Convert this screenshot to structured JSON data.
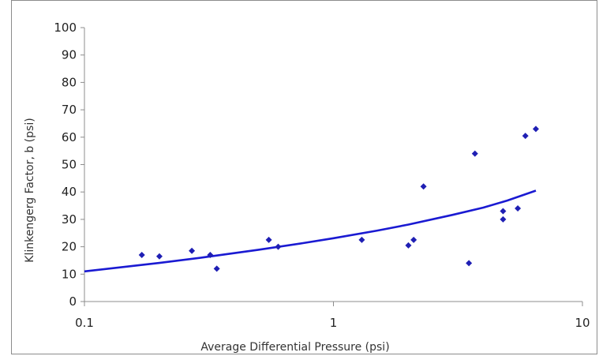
{
  "chart_data": {
    "type": "scatter",
    "title": "",
    "xlabel": "Average Differential Pressure (psi)",
    "ylabel": "Klinkengerg Factor, b (psi)",
    "xscale": "log",
    "xlim": [
      0.1,
      10
    ],
    "ylim": [
      0,
      100
    ],
    "xticks": [
      0.1,
      1,
      10
    ],
    "xtick_labels": [
      "0.1",
      "1",
      "10"
    ],
    "yticks": [
      0,
      10,
      20,
      30,
      40,
      50,
      60,
      70,
      80,
      90,
      100
    ],
    "ytick_labels": [
      "0",
      "10",
      "20",
      "30",
      "40",
      "50",
      "60",
      "70",
      "80",
      "90",
      "100"
    ],
    "grid": false,
    "legend": "none",
    "marker_color": "#1f1fb4",
    "line_color": "#1a1ad2",
    "series": [
      {
        "kind": "points",
        "x": [
          0.17,
          0.2,
          0.27,
          0.32,
          0.34,
          0.55,
          0.6,
          1.3,
          2.0,
          2.1,
          2.3,
          3.5,
          3.7,
          4.8,
          4.8,
          5.5,
          5.9,
          6.5
        ],
        "y": [
          17,
          16.5,
          18.5,
          17,
          12,
          22.5,
          20,
          22.5,
          20.5,
          22.5,
          42,
          14,
          54,
          33,
          30,
          34,
          60.5,
          63
        ]
      },
      {
        "kind": "trendline",
        "x": [
          0.1,
          0.2,
          0.3,
          0.5,
          0.75,
          1.0,
          1.5,
          2.0,
          3.0,
          4.0,
          5.0,
          6.5
        ],
        "y": [
          11,
          14.1,
          16.1,
          18.9,
          21.3,
          23.1,
          25.9,
          28.1,
          31.6,
          34.3,
          36.9,
          40.5
        ]
      }
    ]
  }
}
